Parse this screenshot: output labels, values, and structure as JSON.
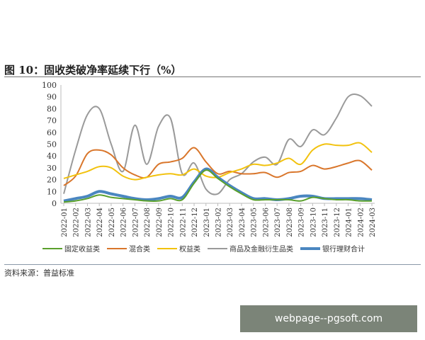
{
  "title": "图 10：固收类破净率延续下行（%）",
  "source": "资料来源：普益标准",
  "watermark": "webpage--pgsoft.com",
  "chart_data": {
    "type": "line",
    "title": "图 10：固收类破净率延续下行（%）",
    "ylim": [
      0,
      100
    ],
    "yticks": [
      0,
      10,
      20,
      30,
      40,
      50,
      60,
      70,
      80,
      90,
      100
    ],
    "grid": false,
    "legend": "bottom",
    "categories": [
      "2022-01",
      "2022-02",
      "2022-03",
      "2022-04",
      "2022-05",
      "2022-06",
      "2022-07",
      "2022-08",
      "2022-09",
      "2022-10",
      "2022-11",
      "2022-12",
      "2023-01",
      "2023-02",
      "2023-03",
      "2023-04",
      "2023-05",
      "2023-06",
      "2023-07",
      "2023-08",
      "2023-09",
      "2023-10",
      "2023-11",
      "2023-12",
      "2024-01",
      "2024-02",
      "2024-03"
    ],
    "series": [
      {
        "name": "固定收益类",
        "color": "#5aa02c",
        "width": 2,
        "values": [
          1,
          2,
          4,
          7,
          5,
          4,
          3,
          2,
          2,
          4,
          3,
          17,
          28,
          21,
          14,
          8,
          3,
          3,
          3,
          3,
          2,
          5,
          4,
          3,
          3,
          2,
          2
        ]
      },
      {
        "name": "混合类",
        "color": "#d9762b",
        "width": 2,
        "values": [
          15,
          23,
          42,
          45,
          41,
          30,
          24,
          22,
          33,
          35,
          38,
          47,
          35,
          25,
          27,
          25,
          25,
          26,
          22,
          26,
          27,
          32,
          29,
          31,
          34,
          36,
          28
        ]
      },
      {
        "name": "权益类",
        "color": "#f2c20e",
        "width": 2,
        "values": [
          21,
          24,
          27,
          31,
          30,
          23,
          20,
          22,
          24,
          25,
          24,
          29,
          23,
          22,
          26,
          29,
          33,
          32,
          34,
          38,
          33,
          45,
          50,
          49,
          49,
          51,
          43
        ]
      },
      {
        "name": "商品及金融衍生品类",
        "color": "#9a9a9a",
        "width": 2,
        "values": [
          8,
          45,
          75,
          80,
          50,
          27,
          66,
          33,
          65,
          72,
          25,
          34,
          12,
          8,
          20,
          25,
          35,
          39,
          33,
          54,
          48,
          62,
          58,
          72,
          90,
          91,
          82
        ]
      },
      {
        "name": "银行理财合计",
        "color": "#4a86c0",
        "width": 4,
        "values": [
          2,
          4,
          6,
          10,
          8,
          6,
          4,
          3,
          4,
          6,
          5,
          18,
          29,
          22,
          15,
          9,
          4,
          4,
          3,
          4,
          6,
          6,
          4,
          4,
          4,
          4,
          3
        ]
      }
    ]
  }
}
